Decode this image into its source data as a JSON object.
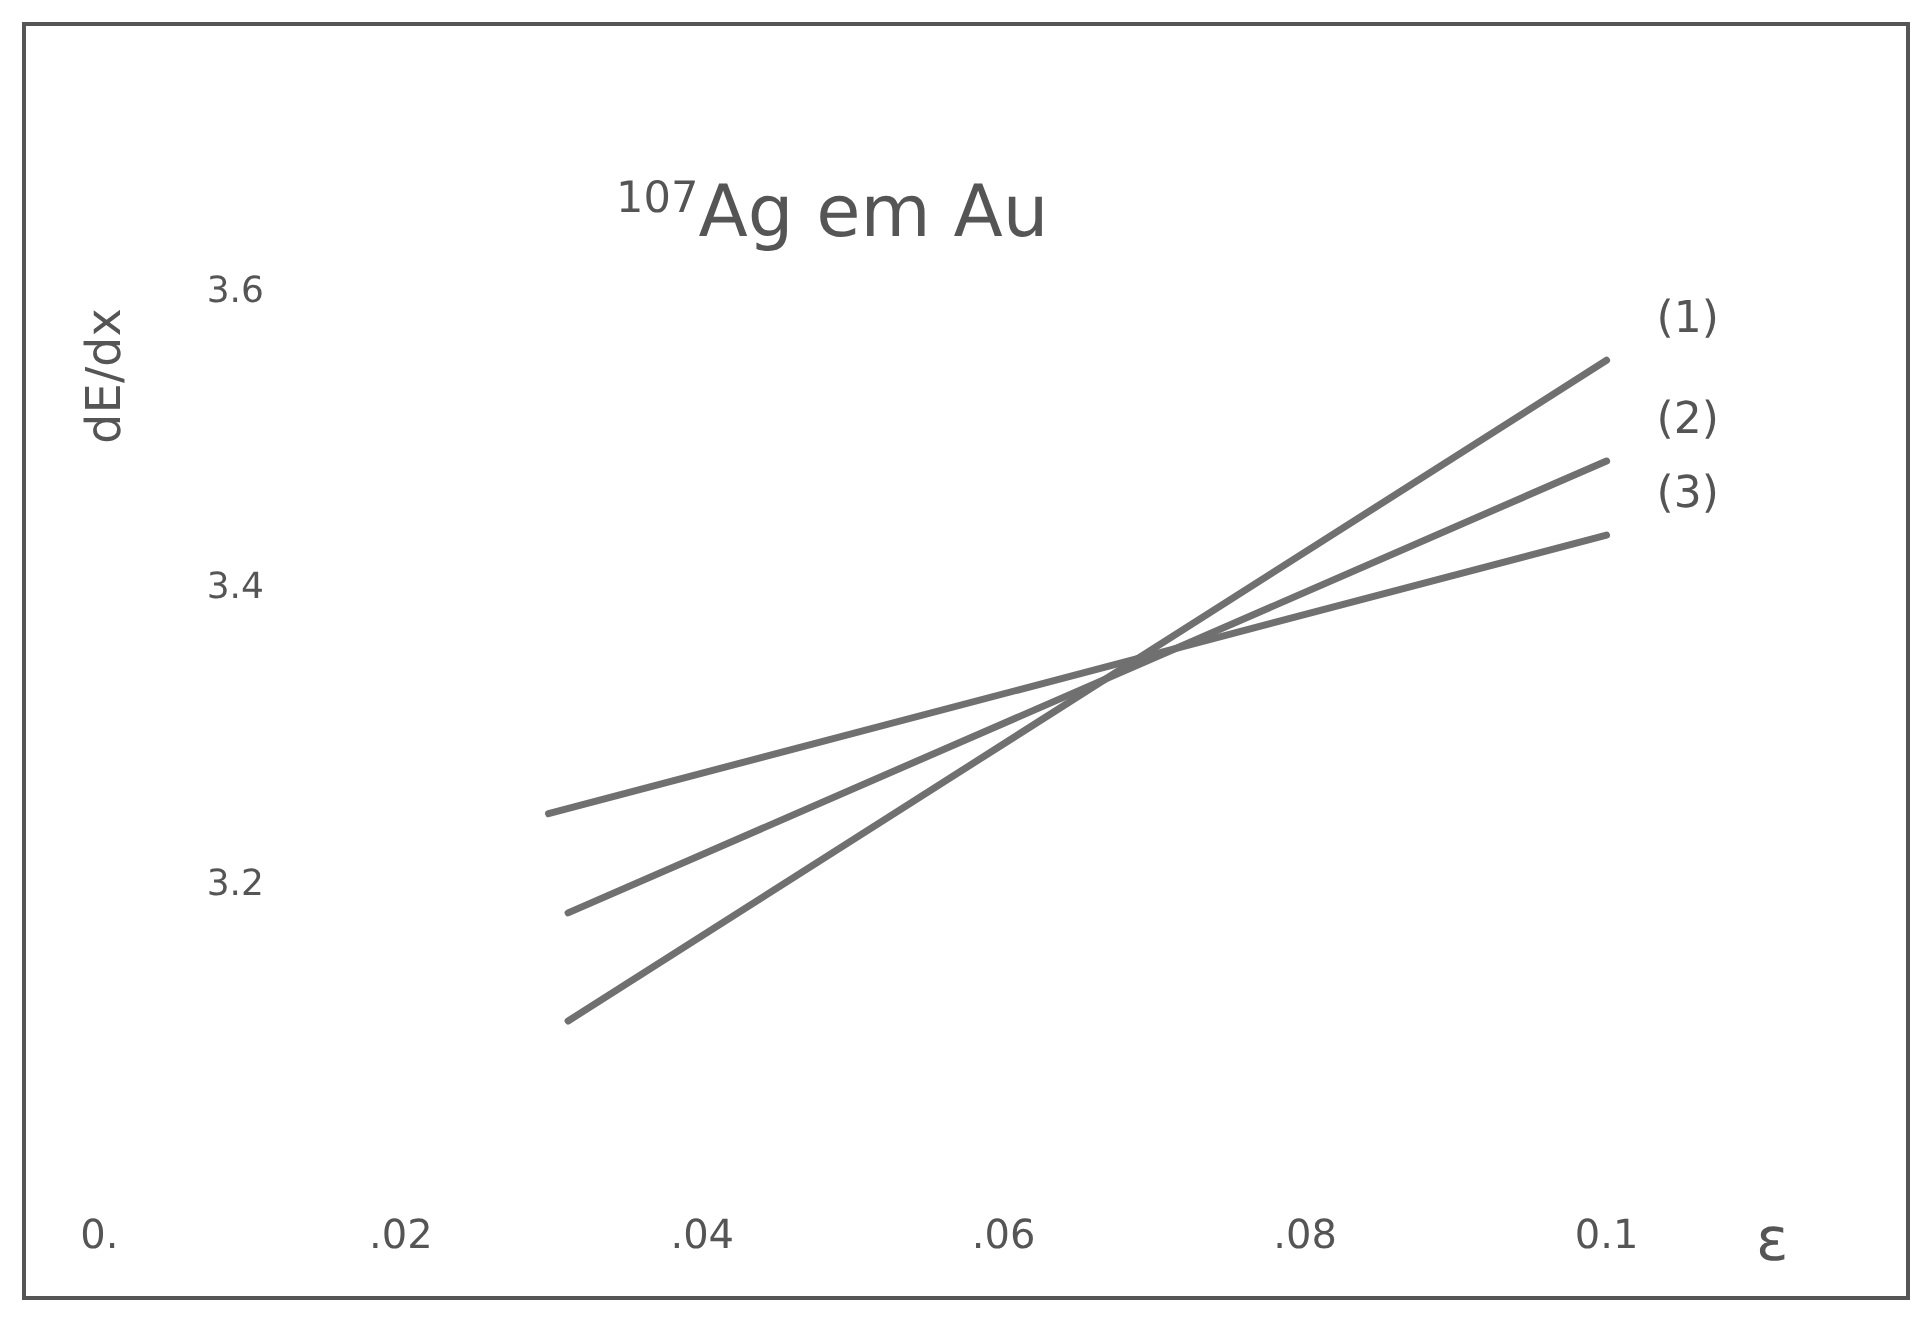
{
  "chart_data": {
    "type": "line",
    "title": "$^{107}$Ag em Au",
    "xlabel": "ε",
    "ylabel": "dE/dx",
    "xlim": [
      -0.005,
      0.12
    ],
    "ylim": [
      2.92,
      3.78
    ],
    "xticks": [
      {
        "value": 0,
        "label": "0."
      },
      {
        "value": 0.02,
        "label": ".02"
      },
      {
        "value": 0.04,
        "label": ".04"
      },
      {
        "value": 0.06,
        "label": ".06"
      },
      {
        "value": 0.08,
        "label": ".08"
      },
      {
        "value": 0.1,
        "label": "0.1"
      }
    ],
    "yticks": [
      3.2,
      3.4,
      3.6
    ],
    "grid": false,
    "marker": "none",
    "line_style": "solid",
    "series": [
      {
        "name": "(1)",
        "color": "#707070",
        "x": [
          0.0311,
          0.1
        ],
        "values": [
          3.107,
          3.553
        ]
      },
      {
        "name": "(2)",
        "color": "#707070",
        "x": [
          0.0311,
          0.1
        ],
        "values": [
          3.18,
          3.485
        ]
      },
      {
        "name": "(3)",
        "color": "#707070",
        "x": [
          0.0298,
          0.1
        ],
        "values": [
          3.247,
          3.435
        ]
      }
    ]
  }
}
